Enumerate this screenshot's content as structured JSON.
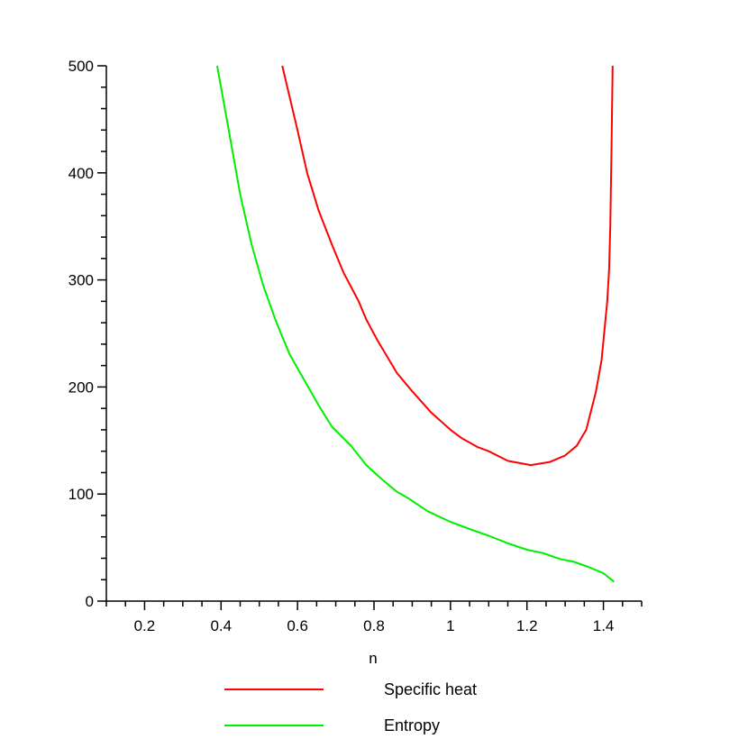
{
  "chart_data": {
    "type": "line",
    "title": "",
    "xlabel": "n",
    "ylabel": "",
    "xlim": [
      0.1,
      1.5
    ],
    "ylim": [
      0,
      500
    ],
    "grid": false,
    "legend_position": "bottom",
    "x_ticks": [
      0.2,
      0.4,
      0.6,
      0.8,
      1,
      1.2,
      1.4
    ],
    "x_tick_labels": [
      "0.2",
      "0.4",
      "0.6",
      "0.8",
      "1",
      "1.2",
      "1.4"
    ],
    "y_ticks": [
      0,
      100,
      200,
      300,
      400,
      500
    ],
    "y_tick_labels": [
      "0",
      "100",
      "200",
      "300",
      "400",
      "500"
    ],
    "series": [
      {
        "name": "Specific heat",
        "color": "#ff0000",
        "points": [
          [
            0.56,
            500
          ],
          [
            0.57,
            485
          ],
          [
            0.6,
            440
          ],
          [
            0.625,
            400
          ],
          [
            0.655,
            365
          ],
          [
            0.69,
            333
          ],
          [
            0.72,
            307
          ],
          [
            0.76,
            280
          ],
          [
            0.78,
            263
          ],
          [
            0.81,
            243
          ],
          [
            0.85,
            219
          ],
          [
            0.86,
            213
          ],
          [
            0.9,
            196
          ],
          [
            0.95,
            176
          ],
          [
            1.0,
            160
          ],
          [
            1.03,
            152
          ],
          [
            1.07,
            144
          ],
          [
            1.1,
            140
          ],
          [
            1.15,
            131
          ],
          [
            1.21,
            127
          ],
          [
            1.26,
            130
          ],
          [
            1.3,
            136
          ],
          [
            1.33,
            145
          ],
          [
            1.355,
            160
          ],
          [
            1.38,
            195
          ],
          [
            1.395,
            225
          ],
          [
            1.41,
            280
          ],
          [
            1.415,
            310
          ],
          [
            1.418,
            350
          ],
          [
            1.421,
            420
          ],
          [
            1.424,
            500
          ]
        ]
      },
      {
        "name": "Entropy",
        "color": "#00ee00",
        "points": [
          [
            0.39,
            500
          ],
          [
            0.42,
            440
          ],
          [
            0.45,
            380
          ],
          [
            0.48,
            333
          ],
          [
            0.51,
            295
          ],
          [
            0.54,
            265
          ],
          [
            0.56,
            247
          ],
          [
            0.58,
            230
          ],
          [
            0.62,
            205
          ],
          [
            0.66,
            180
          ],
          [
            0.69,
            163
          ],
          [
            0.74,
            145
          ],
          [
            0.78,
            127
          ],
          [
            0.82,
            114
          ],
          [
            0.86,
            102
          ],
          [
            0.89,
            96
          ],
          [
            0.94,
            84
          ],
          [
            1.0,
            74
          ],
          [
            1.06,
            66
          ],
          [
            1.1,
            61
          ],
          [
            1.15,
            54
          ],
          [
            1.2,
            48
          ],
          [
            1.24,
            45
          ],
          [
            1.29,
            39
          ],
          [
            1.32,
            37
          ],
          [
            1.36,
            32
          ],
          [
            1.4,
            26
          ],
          [
            1.428,
            18
          ]
        ]
      }
    ]
  }
}
